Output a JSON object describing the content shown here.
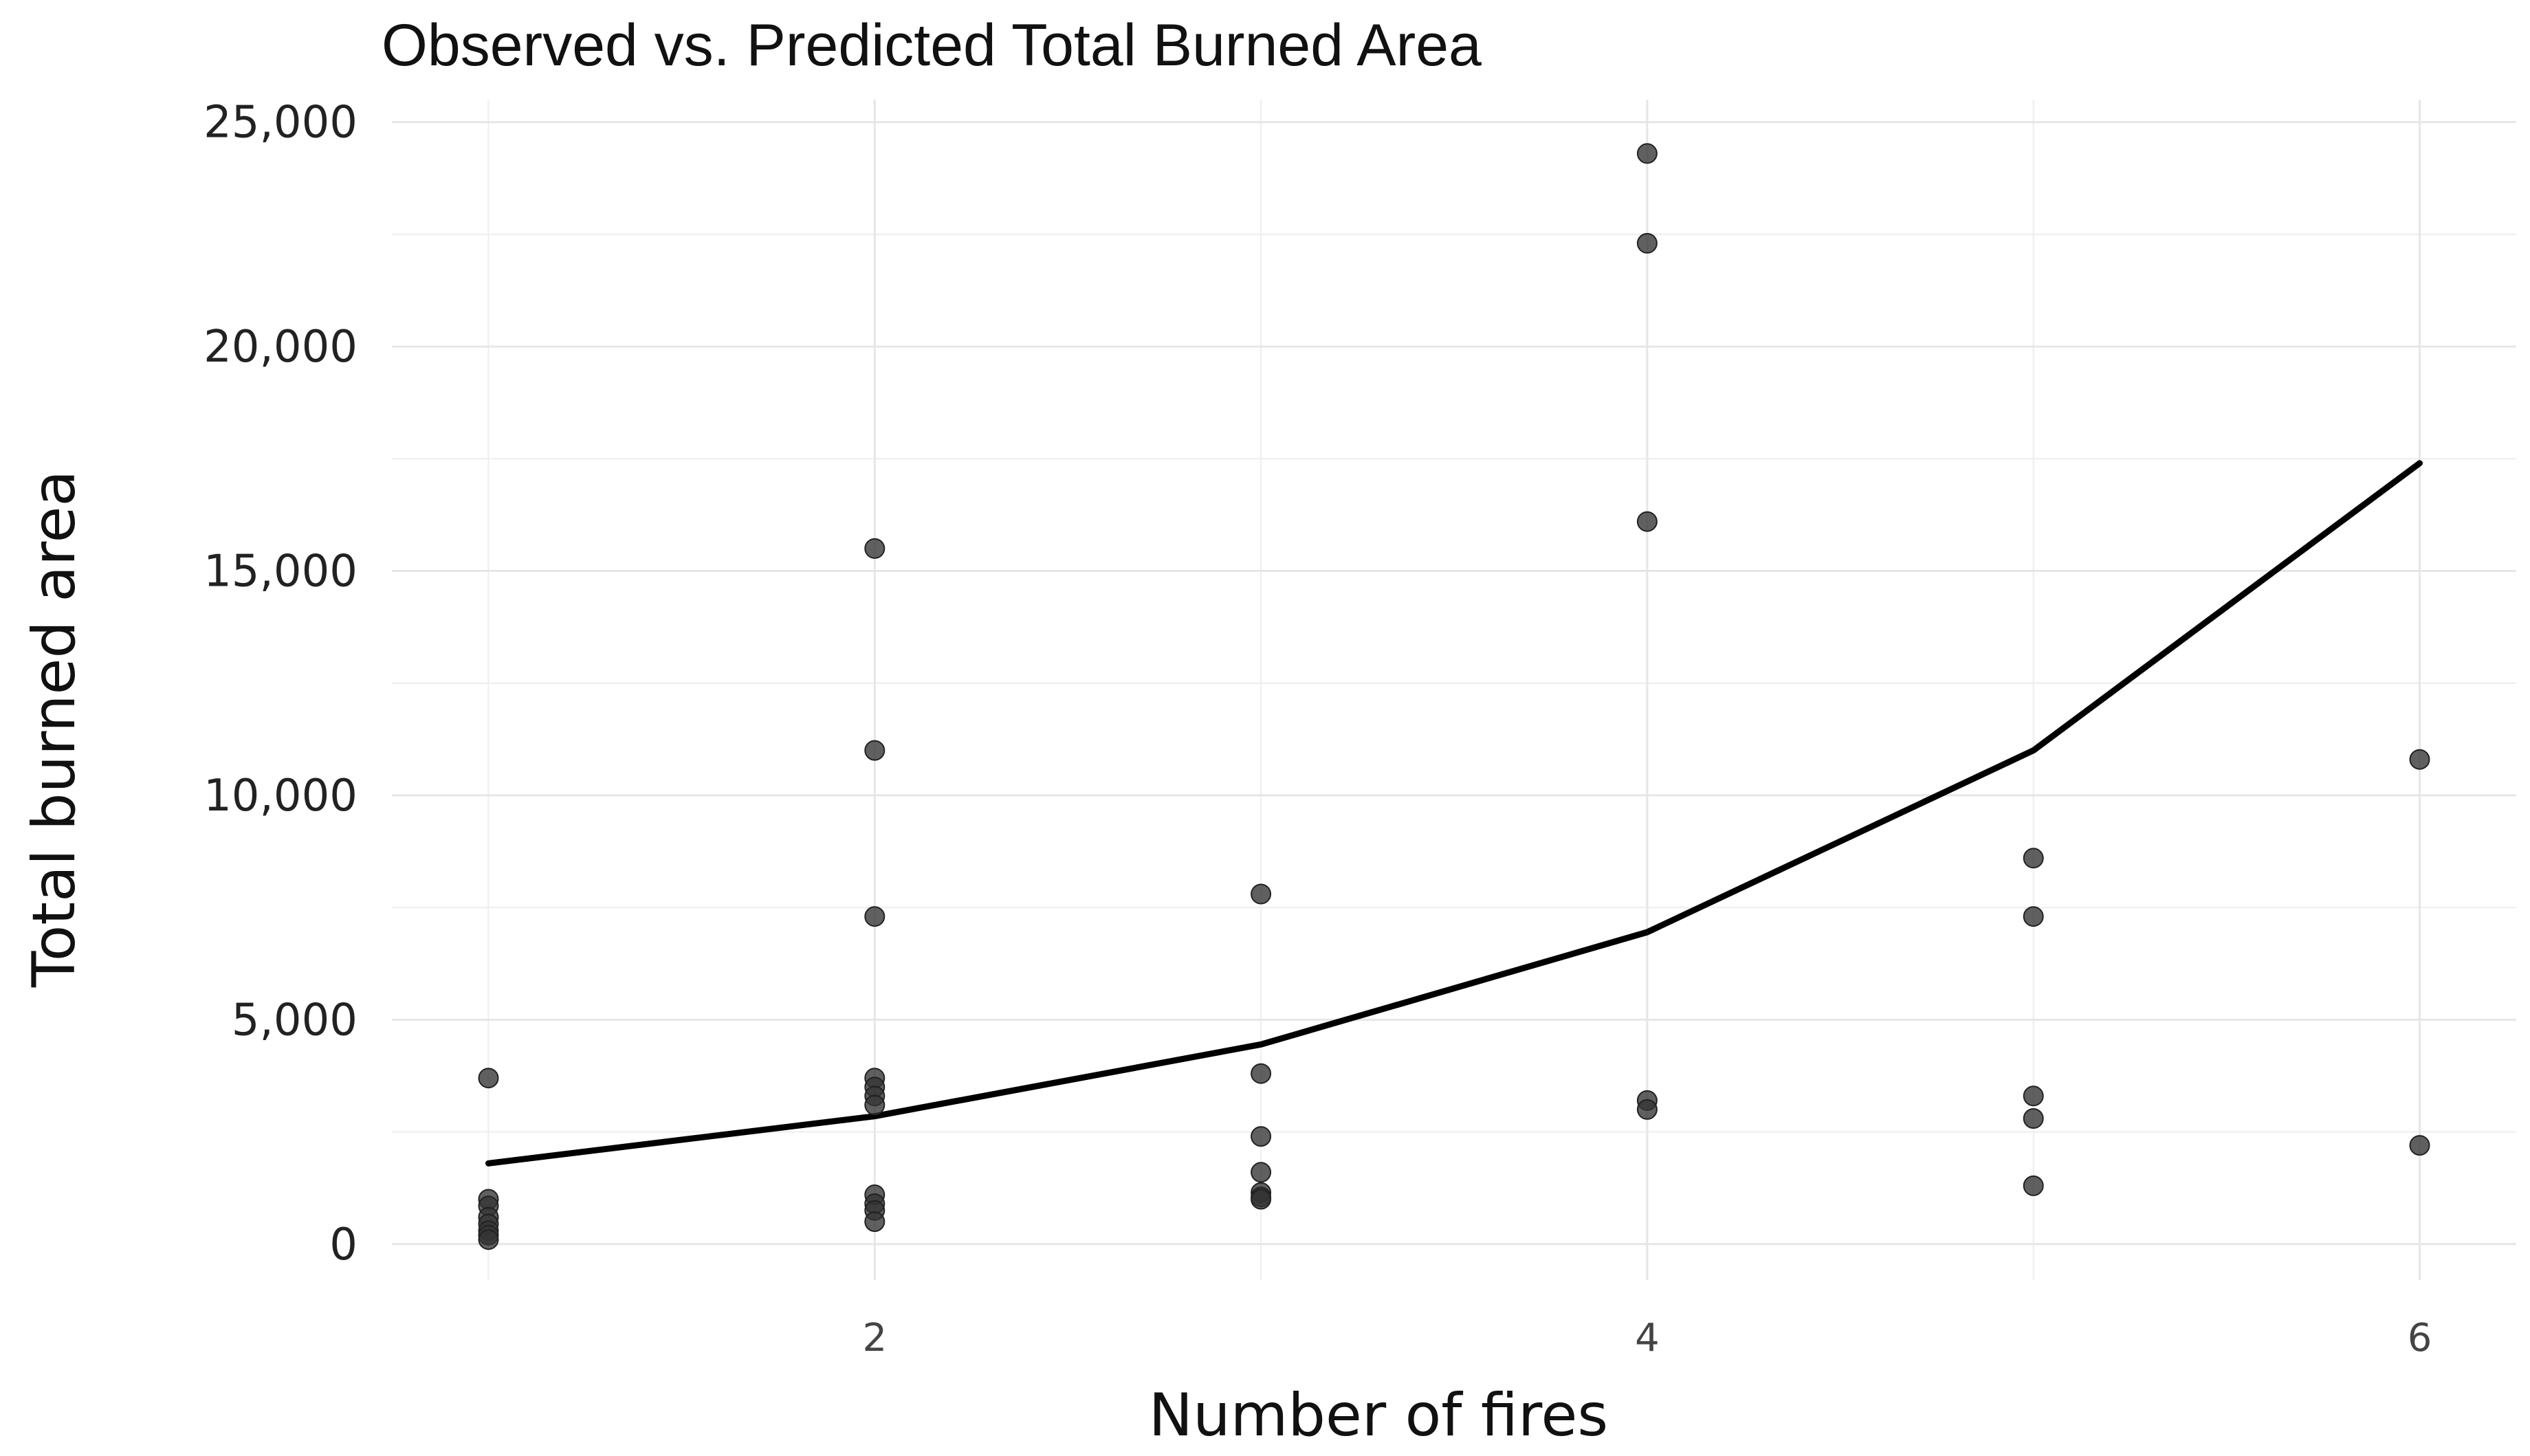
{
  "chart_data": {
    "type": "scatter",
    "title": "Observed vs. Predicted Total Burned Area",
    "xlabel": "Number of fires",
    "ylabel": "Total burned area",
    "xlim": [
      0.75,
      6.25
    ],
    "ylim": [
      -800,
      25500
    ],
    "x_ticks": [
      2,
      4,
      6
    ],
    "x_tick_labels": [
      "2",
      "4",
      "6"
    ],
    "x_minor_ticks": [
      1,
      3,
      5
    ],
    "y_ticks": [
      0,
      5000,
      10000,
      15000,
      20000,
      25000
    ],
    "y_tick_labels": [
      "0",
      "5,000",
      "10,000",
      "15,000",
      "20,000",
      "25,000"
    ],
    "y_minor_ticks": [
      2500,
      7500,
      12500,
      17500,
      22500
    ],
    "grid": true,
    "legend": false,
    "colors": {
      "points": "#333333",
      "line": "#000000",
      "grid": "#e6e6e6"
    },
    "series": [
      {
        "kind": "points",
        "x": [
          1,
          1,
          1,
          1,
          1,
          1,
          1,
          1,
          2,
          2,
          2,
          2,
          2,
          2,
          2,
          2,
          2,
          2,
          2,
          3,
          3,
          3,
          3,
          3,
          3,
          3,
          4,
          4,
          4,
          4,
          4,
          5,
          5,
          5,
          5,
          5,
          6,
          6
        ],
        "y": [
          3700,
          1000,
          850,
          600,
          450,
          300,
          200,
          100,
          15500,
          11000,
          7300,
          3700,
          3500,
          3300,
          3100,
          1100,
          900,
          750,
          500,
          7800,
          3800,
          2400,
          1600,
          1150,
          1050,
          1000,
          24300,
          22300,
          16100,
          3200,
          3000,
          8600,
          7300,
          3300,
          2800,
          1300,
          10800,
          2200
        ]
      },
      {
        "kind": "line",
        "x": [
          1,
          2,
          3,
          4,
          5,
          6
        ],
        "y": [
          1800,
          2850,
          4450,
          6950,
          11000,
          17400
        ]
      }
    ]
  }
}
